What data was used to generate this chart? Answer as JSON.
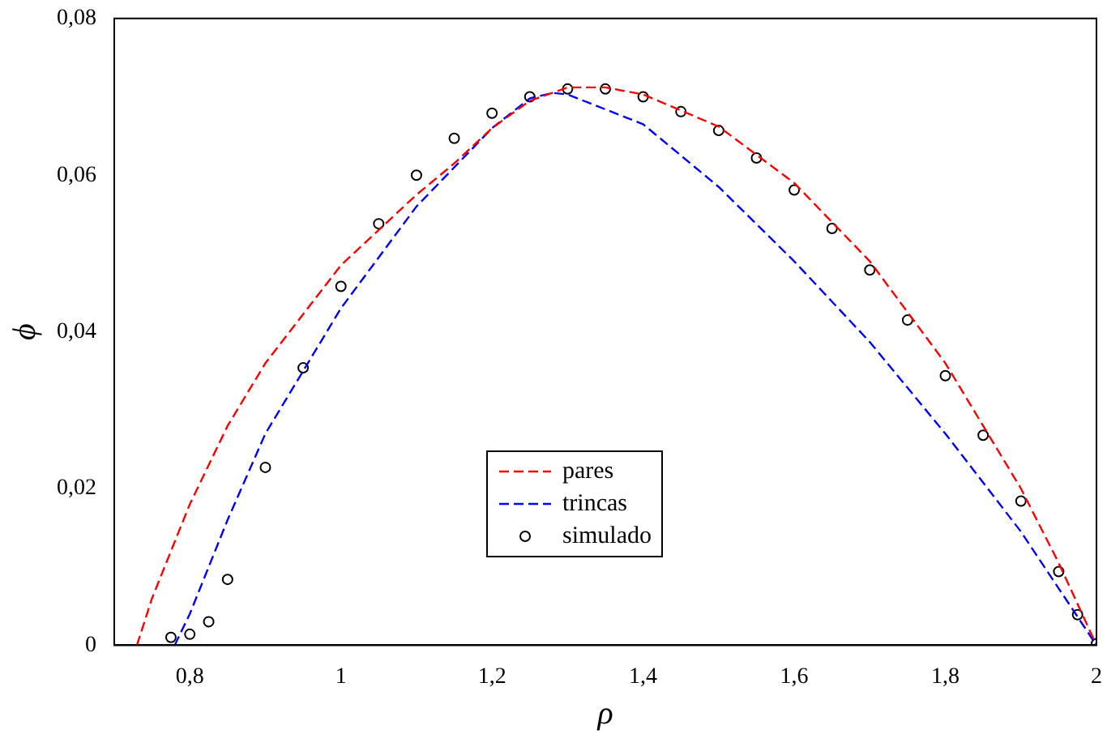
{
  "chart_data": {
    "type": "line",
    "xlabel": "ρ",
    "ylabel": "ϕ",
    "xlim": [
      0.7,
      2
    ],
    "ylim": [
      0,
      0.08
    ],
    "xticks": [
      {
        "value": 0.8,
        "label": "0,8"
      },
      1,
      {
        "value": 1.2,
        "label": "1,2"
      },
      {
        "value": 1.4,
        "label": "1,4"
      },
      {
        "value": 1.6,
        "label": "1,6"
      },
      {
        "value": 1.8,
        "label": "1,8"
      },
      2
    ],
    "yticks": [
      0,
      {
        "value": 0.02,
        "label": "0,02"
      },
      {
        "value": 0.04,
        "label": "0,04"
      },
      {
        "value": 0.06,
        "label": "0,06"
      },
      {
        "value": 0.08,
        "label": "0,08"
      }
    ],
    "grid": false,
    "legend": "bottom",
    "series": [
      {
        "name": "pares",
        "color": "#ff0000",
        "line_style": "dashed",
        "marker": "none",
        "x": [
          0.73,
          0.75,
          0.8,
          0.85,
          0.9,
          1.0,
          1.1,
          1.15,
          1.2,
          1.25,
          1.3,
          1.35,
          1.4,
          1.5,
          1.6,
          1.7,
          1.8,
          1.9,
          1.95,
          2.0
        ],
        "values": [
          0,
          0.006,
          0.018,
          0.028,
          0.036,
          0.0485,
          0.0575,
          0.0615,
          0.066,
          0.0695,
          0.0712,
          0.0712,
          0.0703,
          0.0662,
          0.059,
          0.049,
          0.036,
          0.02,
          0.0105,
          0
        ]
      },
      {
        "name": "trincas",
        "color": "#0000ff",
        "line_style": "dashed",
        "marker": "none",
        "x": [
          0.78,
          0.8,
          0.85,
          0.9,
          1.0,
          1.1,
          1.2,
          1.25,
          1.28,
          1.3,
          1.4,
          1.5,
          1.6,
          1.7,
          1.8,
          1.9,
          2.0
        ],
        "values": [
          0,
          0.004,
          0.016,
          0.027,
          0.043,
          0.056,
          0.066,
          0.0698,
          0.0705,
          0.0703,
          0.0665,
          0.0585,
          0.049,
          0.0387,
          0.027,
          0.0145,
          0
        ]
      },
      {
        "name": "simulado",
        "type": "scatter",
        "color": "#000000",
        "marker": "circle",
        "x": [
          0.775,
          0.8,
          0.825,
          0.85,
          0.9,
          0.95,
          1.0,
          1.05,
          1.1,
          1.15,
          1.2,
          1.25,
          1.3,
          1.35,
          1.4,
          1.45,
          1.5,
          1.55,
          1.6,
          1.65,
          1.7,
          1.75,
          1.8,
          1.85,
          1.9,
          1.95,
          1.975,
          2.0
        ],
        "values": [
          0.001,
          0.0014,
          0.003,
          0.0084,
          0.0227,
          0.0354,
          0.0458,
          0.0538,
          0.06,
          0.0647,
          0.0679,
          0.07,
          0.071,
          0.071,
          0.07,
          0.0681,
          0.0657,
          0.0622,
          0.0581,
          0.0532,
          0.0479,
          0.0415,
          0.0344,
          0.0268,
          0.0184,
          0.0094,
          0.0039,
          0.0002
        ]
      }
    ]
  }
}
